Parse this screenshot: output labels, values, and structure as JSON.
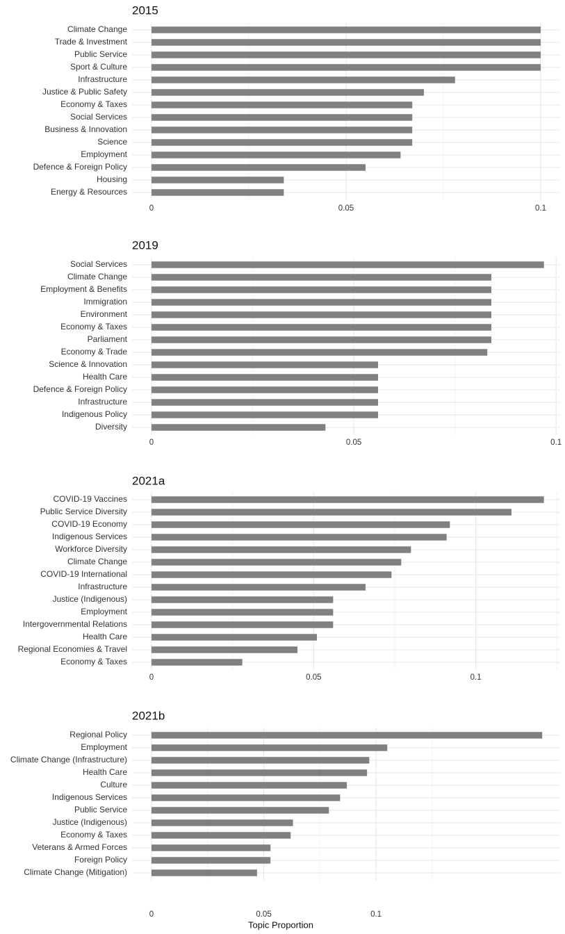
{
  "chart_data": [
    {
      "type": "bar",
      "orientation": "horizontal",
      "title": "2015",
      "categories": [
        "Climate Change",
        "Trade & Investment",
        "Public Service",
        "Sport & Culture",
        "Infrastructure",
        "Justice & Public Safety",
        "Economy & Taxes",
        "Social Services",
        "Business & Innovation",
        "Science",
        "Employment",
        "Defence & Foreign Policy",
        "Housing",
        "Energy & Resources"
      ],
      "values": [
        0.1,
        0.1,
        0.1,
        0.1,
        0.078,
        0.07,
        0.067,
        0.067,
        0.067,
        0.067,
        0.064,
        0.055,
        0.034,
        0.034
      ],
      "xlim": [
        0,
        0.105
      ],
      "xticks": [
        0,
        0.05,
        0.1
      ],
      "xticklabels": [
        "0",
        "0.05",
        "0.1"
      ],
      "xlabel": "",
      "ylabel": "",
      "grid": true
    },
    {
      "type": "bar",
      "orientation": "horizontal",
      "title": "2019",
      "categories": [
        "Social Services",
        "Climate Change",
        "Employment & Benefits",
        "Immigration",
        "Environment",
        "Economy & Taxes",
        "Parliament",
        "Economy & Trade",
        "Science & Innovation",
        "Health Care",
        "Defence & Foreign Policy",
        "Infrastructure",
        "Indigenous Policy",
        "Diversity"
      ],
      "values": [
        0.097,
        0.084,
        0.084,
        0.084,
        0.084,
        0.084,
        0.084,
        0.083,
        0.056,
        0.056,
        0.056,
        0.056,
        0.056,
        0.043
      ],
      "xlim": [
        0,
        0.101
      ],
      "xticks": [
        0,
        0.05,
        0.1
      ],
      "xticklabels": [
        "0",
        "0.05",
        "0.1"
      ],
      "xlabel": "",
      "ylabel": "",
      "grid": true
    },
    {
      "type": "bar",
      "orientation": "horizontal",
      "title": "2021a",
      "categories": [
        "COVID-19 Vaccines",
        "Public Service Diversity",
        "COVID-19 Economy",
        "Indigenous Services",
        "Workforce Diversity",
        "Climate Change",
        "COVID-19 International",
        "Infrastructure",
        "Justice (Indigenous)",
        "Employment",
        "Intergovernmental Relations",
        "Health Care",
        "Regional Economies & Travel",
        "Economy & Taxes"
      ],
      "values": [
        0.121,
        0.111,
        0.092,
        0.091,
        0.08,
        0.077,
        0.074,
        0.066,
        0.056,
        0.056,
        0.056,
        0.051,
        0.045,
        0.028
      ],
      "xlim": [
        0,
        0.126
      ],
      "xticks": [
        0,
        0.05,
        0.1
      ],
      "xticklabels": [
        "0",
        "0.05",
        "0.1"
      ],
      "xlabel": "",
      "ylabel": "",
      "grid": true
    },
    {
      "type": "bar",
      "orientation": "horizontal",
      "title": "2021b",
      "categories": [
        "Regional Policy",
        "Employment",
        "Climate Change (Infrastructure)",
        "Health Care",
        "Culture",
        "Indigenous Services",
        "Public Service",
        "Justice (Indigenous)",
        "Economy & Taxes",
        "Veterans & Armed Forces",
        "Foreign Policy",
        "Climate Change (Mitigation)"
      ],
      "values": [
        0.174,
        0.105,
        0.097,
        0.096,
        0.087,
        0.084,
        0.079,
        0.063,
        0.062,
        0.053,
        0.053,
        0.047
      ],
      "xlim": [
        0,
        0.182
      ],
      "xticks": [
        0,
        0.05,
        0.1
      ],
      "xticklabels": [
        "0",
        "0.05",
        "0.1"
      ],
      "xlabel": "Topic Proportion",
      "ylabel": "",
      "grid": true
    }
  ]
}
